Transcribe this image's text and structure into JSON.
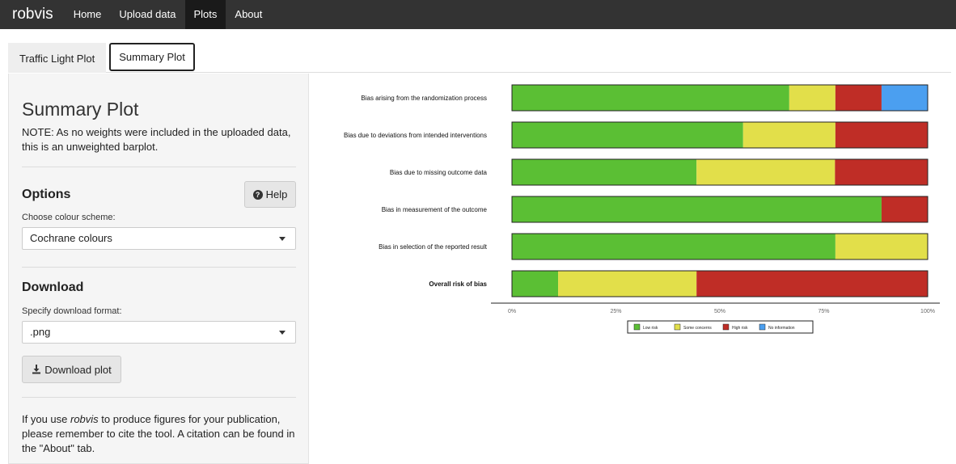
{
  "navbar": {
    "brand": "robvis",
    "items": [
      {
        "label": "Home",
        "active": false
      },
      {
        "label": "Upload data",
        "active": false
      },
      {
        "label": "Plots",
        "active": true
      },
      {
        "label": "About",
        "active": false
      }
    ]
  },
  "tabs": [
    {
      "label": "Traffic Light Plot",
      "active": false
    },
    {
      "label": "Summary Plot",
      "active": true
    }
  ],
  "sidebar": {
    "title": "Summary Plot",
    "note": "NOTE: As no weights were included in the uploaded data, this is an unweighted barplot.",
    "options_title": "Options",
    "help_label": "Help",
    "colour_label": "Choose colour scheme:",
    "colour_value": "Cochrane colours",
    "download_title": "Download",
    "format_label": "Specify download format:",
    "format_value": ".png",
    "download_button": "Download plot",
    "cite_before": "If you use ",
    "cite_tool": "robvis",
    "cite_after": " to produce figures for your publication, please remember to cite the tool. A citation can be found in the \"About\" tab."
  },
  "colors": {
    "low": "#5bbf34",
    "some": "#e2df4a",
    "high": "#bf2d26",
    "noinfo": "#4b9ff0"
  },
  "chart_data": {
    "type": "bar",
    "orientation": "horizontal-stacked",
    "categories": [
      "Bias arising from the randomization process",
      "Bias due to deviations from intended interventions",
      "Bias due to missing outcome data",
      "Bias in measurement of the outcome",
      "Bias in selection of the reported result",
      "Overall risk of bias"
    ],
    "series": [
      {
        "name": "Low risk",
        "key": "low",
        "values": [
          66.7,
          55.6,
          44.4,
          88.9,
          77.8,
          11.1
        ]
      },
      {
        "name": "Some concerns",
        "key": "some",
        "values": [
          11.1,
          22.2,
          33.3,
          0,
          22.2,
          33.3
        ]
      },
      {
        "name": "High risk",
        "key": "high",
        "values": [
          11.1,
          22.2,
          22.2,
          11.1,
          0,
          55.6
        ]
      },
      {
        "name": "No information",
        "key": "noinfo",
        "values": [
          11.1,
          0,
          0,
          0,
          0,
          0
        ]
      }
    ],
    "xticks": [
      "0%",
      "25%",
      "50%",
      "75%",
      "100%"
    ],
    "xlim": [
      0,
      100
    ],
    "legend": "bottom"
  }
}
